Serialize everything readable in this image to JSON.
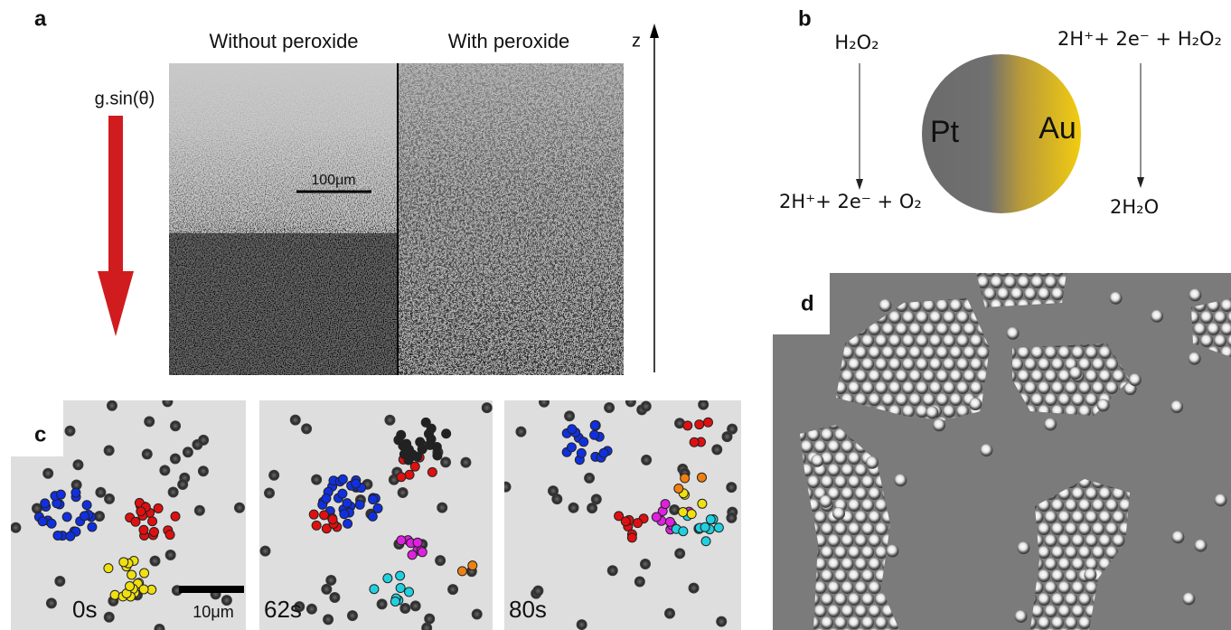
{
  "panels": {
    "a": {
      "label": "a",
      "left_title": "Without peroxide",
      "right_title": "With peroxide",
      "axis": "z",
      "gravity": "g.sin(θ)",
      "scale_bar": "100μm"
    },
    "b": {
      "label": "b",
      "left_reactant": "H₂O₂",
      "left_products": "2H⁺+ 2e⁻ + O₂",
      "right_reactants": "2H⁺+ 2e⁻ + H₂O₂",
      "right_product": "2H₂O",
      "left_metal": "Pt",
      "right_metal": "Au"
    },
    "c": {
      "label": "c",
      "times": [
        "0s",
        "62s",
        "80s"
      ],
      "scale_bar": "10μm"
    },
    "d": {
      "label": "d"
    }
  }
}
